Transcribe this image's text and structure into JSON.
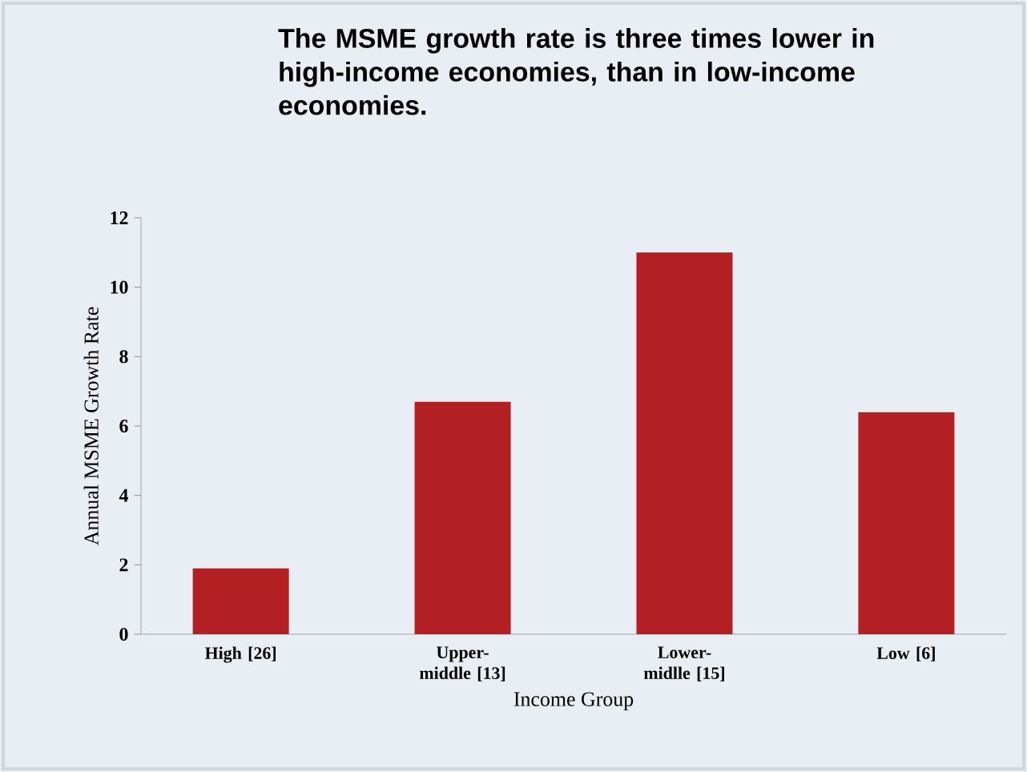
{
  "chart_data": {
    "type": "bar",
    "title": "The MSME growth rate is three times lower in high-income economies, than in low-income economies.",
    "xlabel": "Income Group",
    "ylabel": "Annual MSME  Growth Rate",
    "categories": [
      "High [26]",
      "Upper-middle [13]",
      "Lower-midlle [15]",
      "Low [6]"
    ],
    "values": [
      1.9,
      6.7,
      11.0,
      6.4
    ],
    "color": "#b22024",
    "ylim": [
      0,
      12
    ],
    "yticks": [
      0,
      2,
      4,
      6,
      8,
      10,
      12
    ],
    "grid": false
  }
}
